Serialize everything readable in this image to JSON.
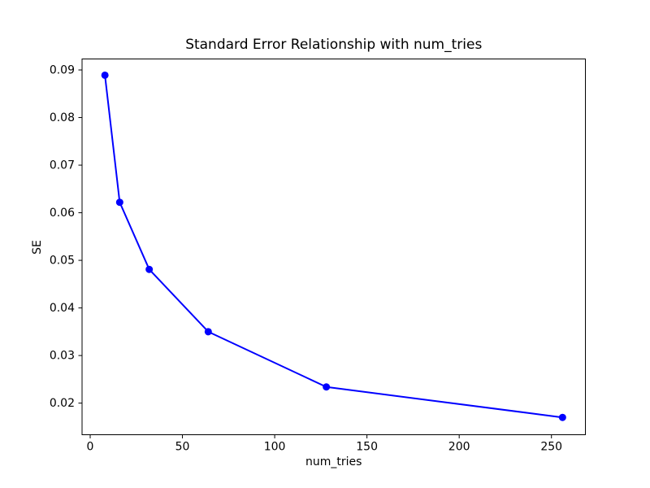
{
  "chart_data": {
    "type": "line",
    "title": "Standard Error Relationship with num_tries",
    "xlabel": "num_tries",
    "ylabel": "SE",
    "x": [
      8,
      16,
      32,
      64,
      128,
      256
    ],
    "y": [
      0.0889,
      0.0622,
      0.0481,
      0.035,
      0.0234,
      0.017
    ],
    "series": [
      {
        "name": "SE",
        "x": [
          8,
          16,
          32,
          64,
          128,
          256
        ],
        "y": [
          0.0889,
          0.0622,
          0.0481,
          0.035,
          0.0234,
          0.017
        ]
      }
    ],
    "xlim": [
      -4.4,
      268.4
    ],
    "ylim": [
      0.01336,
      0.09231
    ],
    "xticks": {
      "values": [
        0,
        50,
        100,
        150,
        200,
        250
      ],
      "labels": [
        "0",
        "50",
        "100",
        "150",
        "200",
        "250"
      ]
    },
    "yticks": {
      "values": [
        0.02,
        0.03,
        0.04,
        0.05,
        0.06,
        0.07,
        0.08,
        0.09
      ],
      "labels": [
        "0.02",
        "0.03",
        "0.04",
        "0.05",
        "0.06",
        "0.07",
        "0.08",
        "0.09"
      ]
    },
    "grid": false,
    "legend": "none",
    "line_color": "#0000ff",
    "marker": "circle",
    "marker_color": "#0000ff",
    "frame_color": "#000000",
    "background_color": "#ffffff"
  }
}
